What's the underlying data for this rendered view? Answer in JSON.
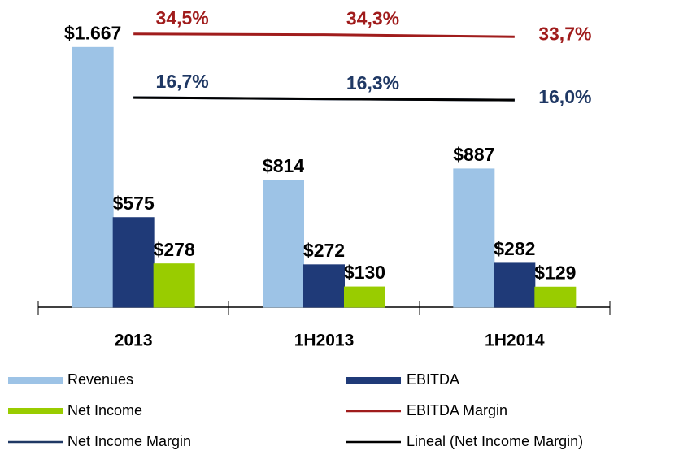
{
  "chart_data": {
    "type": "bar",
    "categories": [
      "2013",
      "1H2013",
      "1H2014"
    ],
    "ylim": [
      0,
      1700
    ],
    "y2lim": [
      -42,
      44
    ],
    "series": [
      {
        "name": "Revenues",
        "color": "#9dc3e6",
        "values": [
          1667,
          814,
          887
        ],
        "value_labels": [
          "$1.667",
          "$814",
          "$887"
        ]
      },
      {
        "name": "EBITDA",
        "color": "#1f3a78",
        "values": [
          575,
          272,
          282
        ],
        "value_labels": [
          "$575",
          "$272",
          "$282"
        ]
      },
      {
        "name": "Net Income",
        "color": "#99cc00",
        "values": [
          278,
          130,
          129
        ],
        "value_labels": [
          "$278",
          "$130",
          "$129"
        ]
      },
      {
        "name": "EBITDA Margin",
        "color": "#a01c1c",
        "axis": "y2",
        "values": [
          34.5,
          34.3,
          33.7
        ],
        "value_labels": [
          "34,5%",
          "34,3%",
          "33,7%"
        ]
      },
      {
        "name": "Net Income Margin",
        "color": "#1f3864",
        "axis": "y2",
        "values": [
          16.7,
          16.3,
          16.0
        ],
        "value_labels": [
          "16,7%",
          "16,3%",
          "16,0%"
        ]
      },
      {
        "name": "Lineal (Net Income Margin)",
        "color": "#000000",
        "axis": "y2",
        "values": [
          16.68,
          16.33,
          15.98
        ]
      }
    ]
  }
}
